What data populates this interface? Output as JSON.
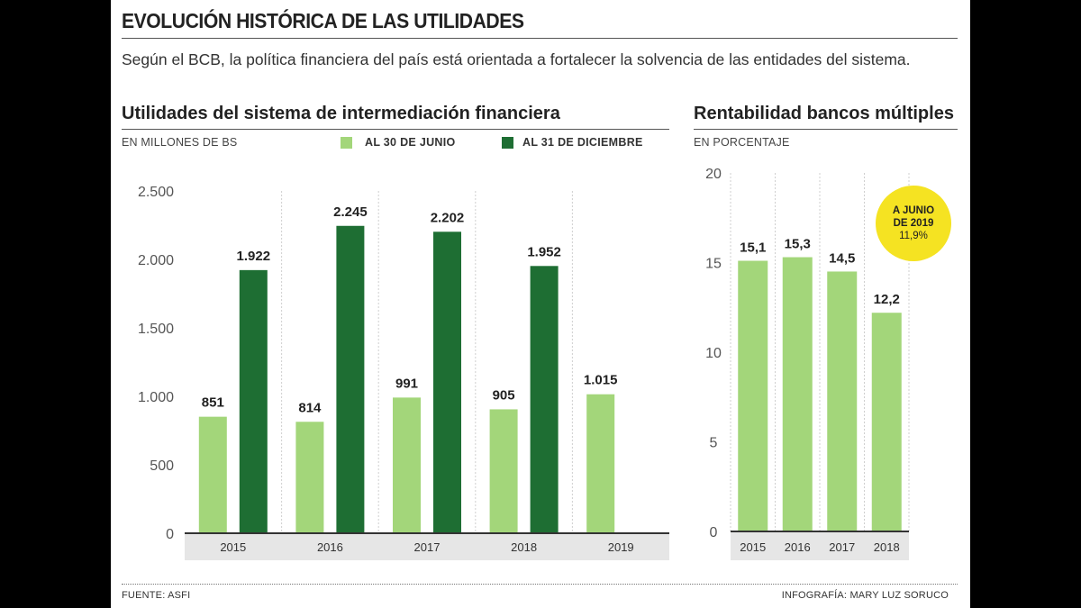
{
  "header": {
    "title": "EVOLUCIÓN HISTÓRICA DE LAS UTILIDADES",
    "subtitle": "Según el BCB, la política financiera del país está orientada a fortalecer la solvencia de las entidades del sistema."
  },
  "colors": {
    "light_green": "#a3d67a",
    "dark_green": "#1e6e33",
    "yellow": "#f5e322"
  },
  "chart_data": [
    {
      "type": "bar",
      "title": "Utilidades del sistema de intermediación financiera",
      "unit_label": "EN MILLONES DE BS",
      "categories": [
        "2015",
        "2016",
        "2017",
        "2018",
        "2019"
      ],
      "series": [
        {
          "name": "AL 30 DE JUNIO",
          "color": "#a3d67a",
          "values": [
            851,
            814,
            991,
            905,
            1015
          ],
          "labels": [
            "851",
            "814",
            "991",
            "905",
            "1.015"
          ]
        },
        {
          "name": "AL 31 DE DICIEMBRE",
          "color": "#1e6e33",
          "values": [
            1922,
            2245,
            2202,
            1952,
            null
          ],
          "labels": [
            "1.922",
            "2.245",
            "2.202",
            "1.952",
            ""
          ]
        }
      ],
      "ylim": [
        0,
        2500
      ],
      "yticks": [
        0,
        500,
        1000,
        1500,
        2000,
        2500
      ],
      "ytick_labels": [
        "0",
        "500",
        "1.000",
        "1.500",
        "2.000",
        "2.500"
      ],
      "grid": "vertical separators",
      "legend": "top"
    },
    {
      "type": "bar",
      "title": "Rentabilidad bancos múltiples",
      "unit_label": "EN PORCENTAJE",
      "categories": [
        "2015",
        "2016",
        "2017",
        "2018"
      ],
      "series": [
        {
          "color": "#a3d67a",
          "values": [
            15.1,
            15.3,
            14.5,
            12.2
          ],
          "labels": [
            "15,1",
            "15,3",
            "14,5",
            "12,2"
          ]
        }
      ],
      "ylim": [
        0,
        20
      ],
      "yticks": [
        0,
        5,
        10,
        15,
        20
      ],
      "ytick_labels": [
        "0",
        "5",
        "10",
        "15",
        "20"
      ],
      "annotation": {
        "line1": "A JUNIO",
        "line2": "DE 2019",
        "line3": "11,9%"
      }
    }
  ],
  "footer": {
    "source": "FUENTE: ASFI",
    "credit": "INFOGRAFÍA: MARY LUZ SORUCO"
  }
}
